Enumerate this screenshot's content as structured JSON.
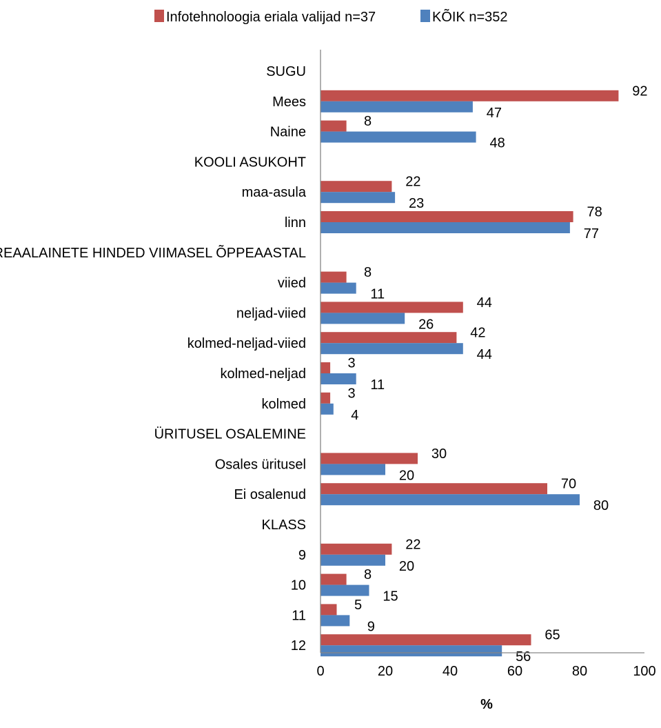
{
  "chart_data": {
    "type": "bar",
    "orientation": "horizontal",
    "title": "",
    "xlabel": "%",
    "ylabel": "",
    "xlim": [
      0,
      100
    ],
    "x_ticks": [
      "0",
      "20",
      "40",
      "60",
      "80",
      "100"
    ],
    "grid": false,
    "legend_position": "top",
    "categories": [
      "SUGU",
      "Mees",
      "Naine",
      "KOOLI ASUKOHT",
      "maa-asula",
      "linn",
      "REAALAINETE HINDED VIIMASEL ÕPPEAASTAL",
      "viied",
      "neljad-viied",
      "kolmed-neljad-viied",
      "kolmed-neljad",
      "kolmed",
      "ÜRITUSEL OSALEMINE",
      "Osales üritusel",
      "Ei osalenud",
      "KLASS",
      "9",
      "10",
      "11",
      "12"
    ],
    "series": [
      {
        "name": "Infotehnoloogia eriala valijad n=37",
        "color": "#C0504D",
        "values": [
          null,
          92,
          8,
          null,
          22,
          78,
          null,
          8,
          44,
          42,
          3,
          3,
          null,
          30,
          70,
          null,
          22,
          8,
          5,
          65
        ],
        "labels": [
          "",
          "92",
          "8",
          "",
          "22",
          "78",
          "",
          "8",
          "44",
          "42",
          "3",
          "3",
          "",
          "30",
          "70",
          "",
          "22",
          "8",
          "5",
          "65"
        ]
      },
      {
        "name": "KÕIK n=352",
        "color": "#4F81BD",
        "values": [
          null,
          47,
          48,
          null,
          23,
          77,
          null,
          11,
          26,
          44,
          11,
          4,
          null,
          20,
          80,
          null,
          20,
          15,
          9,
          56
        ],
        "labels": [
          "",
          "47",
          "48",
          "",
          "23",
          "77",
          "",
          "11",
          "26",
          "44",
          "11",
          "4",
          "",
          "20",
          "80",
          "",
          "20",
          "15",
          "9",
          "56"
        ]
      }
    ]
  }
}
